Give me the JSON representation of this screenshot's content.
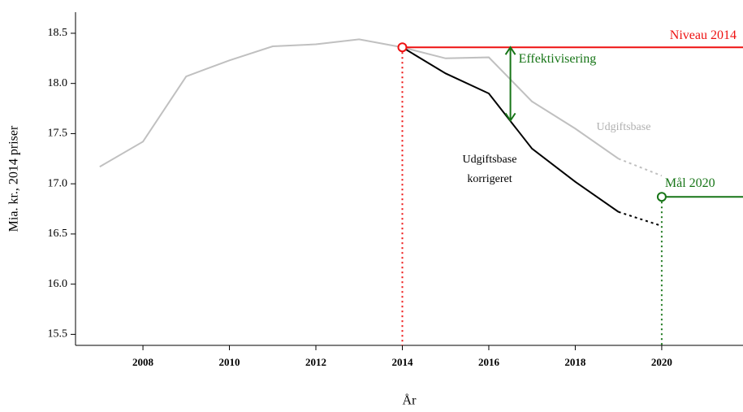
{
  "chart_data": {
    "type": "line",
    "y_label": "Mia. kr., 2014 priser",
    "x_label": "År",
    "x": [
      2007,
      2008,
      2009,
      2010,
      2011,
      2012,
      2013,
      2014,
      2015,
      2016,
      2017,
      2018,
      2019,
      2020
    ],
    "projection_start": 2019,
    "series": [
      {
        "name": "Udgiftsbase",
        "color": "#c0c0c0",
        "values": [
          17.17,
          17.42,
          18.07,
          18.23,
          18.37,
          18.39,
          18.44,
          18.36,
          18.25,
          18.26,
          17.82,
          17.55,
          17.25,
          17.08
        ]
      },
      {
        "name": "Udgiftsbase korrigeret",
        "color": "#000000",
        "values": [
          null,
          null,
          null,
          null,
          null,
          null,
          null,
          18.36,
          18.1,
          17.9,
          17.35,
          17.02,
          16.72,
          16.58
        ]
      }
    ],
    "reference_lines": [
      {
        "label": "Niveau 2014",
        "x": 2014,
        "y": 18.36,
        "color": "#ee1111"
      },
      {
        "label": "Mål 2020",
        "x": 2020,
        "y": 16.87,
        "color": "#177517"
      }
    ],
    "arrow": {
      "label": "Effektivisering",
      "x": 2016.5,
      "from": 18.36,
      "to": 17.63,
      "color": "#177517"
    },
    "xlim": [
      2006.44,
      2021.88
    ],
    "xticks": [
      2008,
      2010,
      2012,
      2014,
      2016,
      2018,
      2020
    ],
    "ylim": [
      15.39,
      18.71
    ],
    "yticks": [
      15.5,
      {
        "value": 16,
        "label": "16.0"
      },
      16.5,
      {
        "value": 17,
        "label": "17.0"
      },
      17.5,
      {
        "value": 18,
        "label": "18.0"
      },
      18.5
    ]
  }
}
